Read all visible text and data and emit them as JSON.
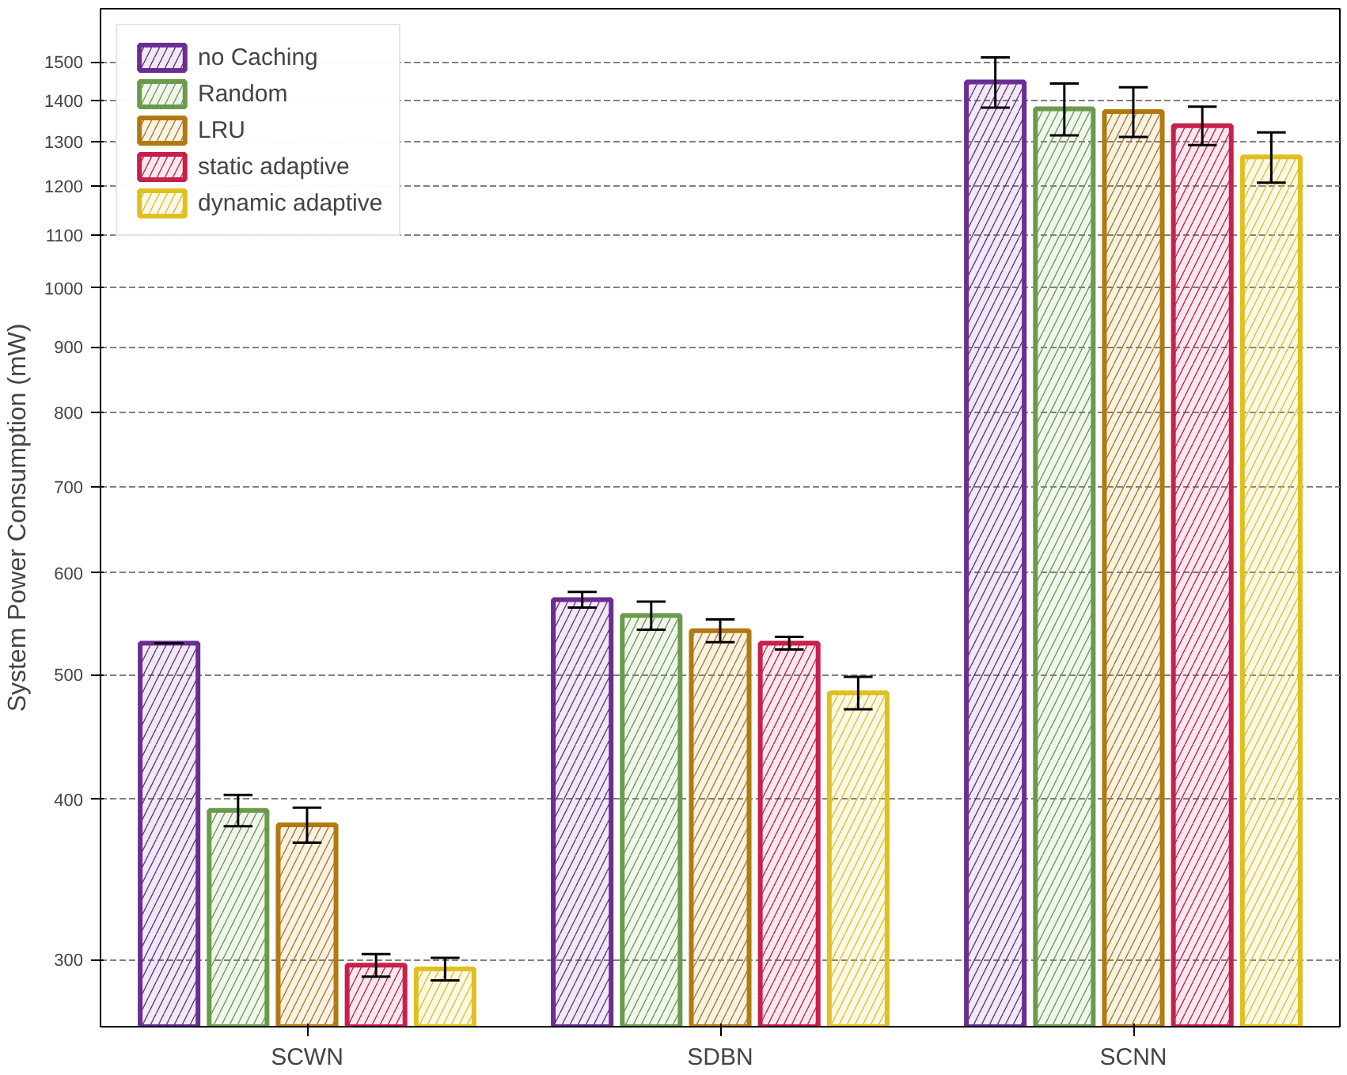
{
  "chart_data": {
    "type": "bar",
    "ylabel": "System Power Consumption (mW)",
    "categories": [
      "SCWN",
      "SDBN",
      "SCNN"
    ],
    "series": [
      {
        "name": "no Caching",
        "color": "#6a2d91",
        "values": [
          529,
          572,
          1447
        ],
        "errors": [
          0,
          8,
          65
        ]
      },
      {
        "name": "Random",
        "color": "#6b9a4c",
        "values": [
          392,
          556,
          1379
        ],
        "errors": [
          11,
          14,
          64
        ]
      },
      {
        "name": "LRU",
        "color": "#b07a10",
        "values": [
          382,
          541,
          1372
        ],
        "errors": [
          12,
          11,
          61
        ]
      },
      {
        "name": "static adaptive",
        "color": "#c8204c",
        "values": [
          297,
          529,
          1338
        ],
        "errors": [
          6,
          6,
          46
        ]
      },
      {
        "name": "dynamic adaptive",
        "color": "#e0c020",
        "values": [
          295,
          484,
          1265
        ],
        "errors": [
          6,
          14,
          57
        ]
      }
    ],
    "log": true,
    "ylim": [
      266,
      1650
    ],
    "yticks": [
      300,
      400,
      500,
      600,
      700,
      800,
      900,
      1000,
      1100,
      1200,
      1300,
      1400,
      1500
    ],
    "grid": "y",
    "legend": "top left"
  }
}
